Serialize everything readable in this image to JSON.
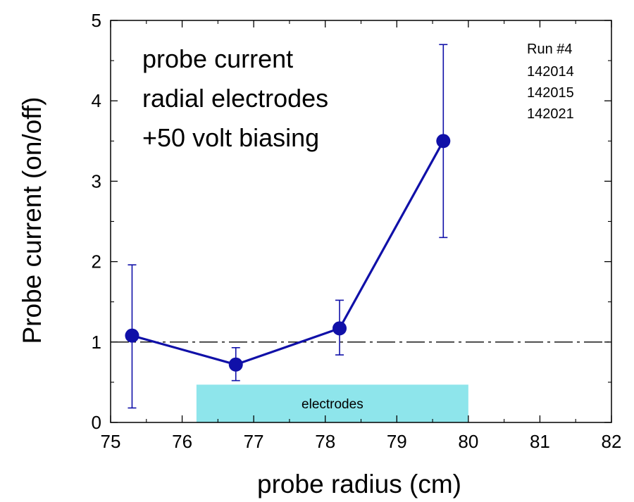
{
  "chart_data": {
    "type": "scatter",
    "xlabel": "probe radius (cm)",
    "ylabel": "Probe current (on/off)",
    "xlim": [
      75,
      82
    ],
    "ylim": [
      0,
      5
    ],
    "x_ticks": [
      75,
      76,
      77,
      78,
      79,
      80,
      81,
      82
    ],
    "y_ticks": [
      0,
      1,
      2,
      3,
      4,
      5
    ],
    "grid": false,
    "annotation_lines": [
      "probe current",
      "radial electrodes",
      "+50 volt biasing"
    ],
    "run_info": [
      "Run #4",
      "142014",
      "142015",
      "142021"
    ],
    "reference_line": {
      "y": 1,
      "style": "dash-dot"
    },
    "shaded_region": {
      "label": "electrodes",
      "x": [
        76.2,
        80.0
      ],
      "y": [
        0,
        0.47
      ],
      "color": "#8ee5eb"
    },
    "series": [
      {
        "color": "#1010a8",
        "x": [
          75.3,
          76.75,
          78.2,
          79.65
        ],
        "y": [
          1.08,
          0.72,
          1.17,
          3.5
        ],
        "err_low": [
          0.18,
          0.52,
          0.84,
          2.3
        ],
        "err_high": [
          1.96,
          0.93,
          1.52,
          4.7
        ]
      }
    ]
  }
}
